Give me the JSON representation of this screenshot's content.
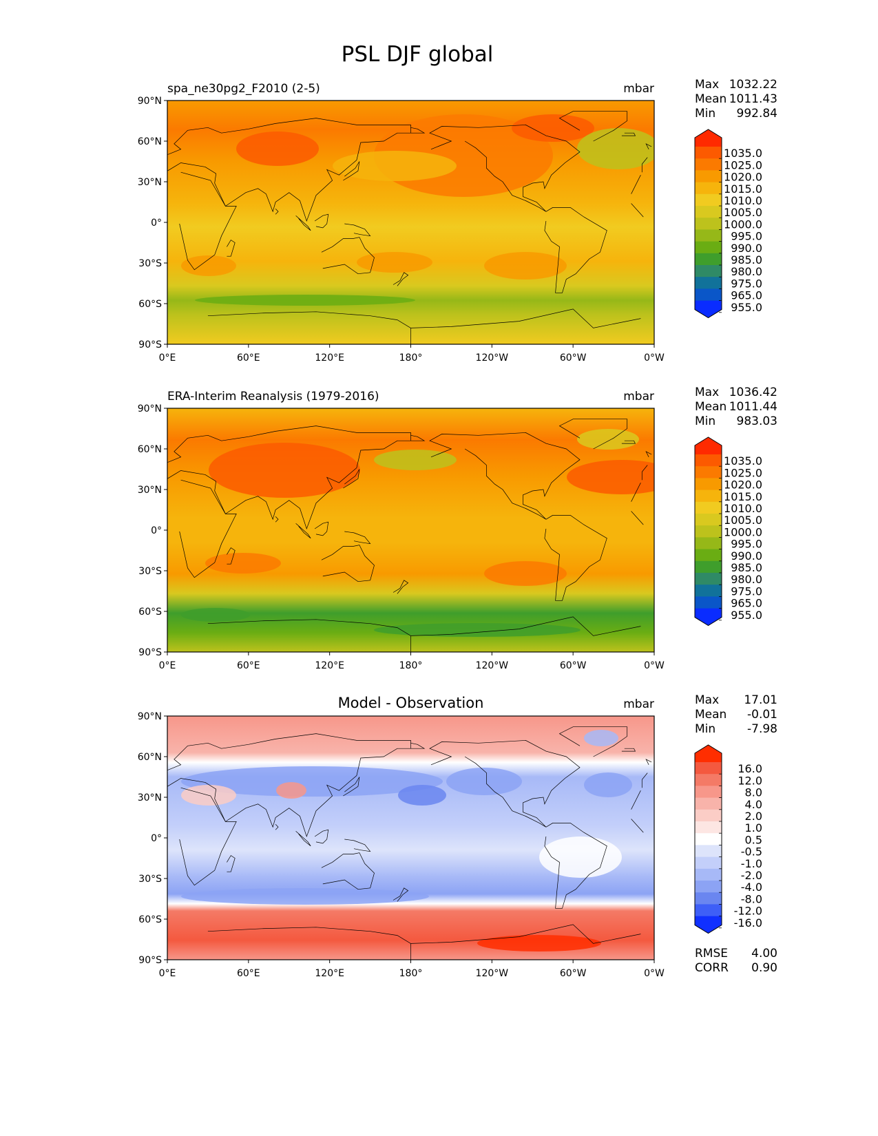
{
  "title": "PSL DJF global",
  "panels": [
    {
      "name": "model",
      "title_left": "spa_ne30pg2_F2010 (2-5)",
      "title_center": "",
      "units": "mbar",
      "stats": [
        [
          "Max",
          "1032.22"
        ],
        [
          "Mean",
          "1011.43"
        ],
        [
          "Min",
          "992.84"
        ]
      ],
      "levels": [
        "1035.0",
        "1025.0",
        "1020.0",
        "1015.0",
        "1010.0",
        "1005.0",
        "1000.0",
        "995.0",
        "990.0",
        "985.0",
        "980.0",
        "975.0",
        "965.0",
        "955.0"
      ],
      "colors": [
        "#ff2a00",
        "#fc5a00",
        "#fb7a00",
        "#f89a00",
        "#f6b40c",
        "#f1cb20",
        "#d9c91f",
        "#bdc21c",
        "#96b818",
        "#6aad13",
        "#3f9e2c",
        "#2f8a66",
        "#11729a",
        "#0a56c8",
        "#0a2cff"
      ],
      "extra_stats": []
    },
    {
      "name": "observation",
      "title_left": "ERA-Interim Reanalysis (1979-2016)",
      "title_center": "",
      "units": "mbar",
      "stats": [
        [
          "Max",
          "1036.42"
        ],
        [
          "Mean",
          "1011.44"
        ],
        [
          "Min",
          "983.03"
        ]
      ],
      "levels": [
        "1035.0",
        "1025.0",
        "1020.0",
        "1015.0",
        "1010.0",
        "1005.0",
        "1000.0",
        "995.0",
        "990.0",
        "985.0",
        "980.0",
        "975.0",
        "965.0",
        "955.0"
      ],
      "colors": [
        "#ff2a00",
        "#fc5a00",
        "#fb7a00",
        "#f89a00",
        "#f6b40c",
        "#f1cb20",
        "#d9c91f",
        "#bdc21c",
        "#96b818",
        "#6aad13",
        "#3f9e2c",
        "#2f8a66",
        "#11729a",
        "#0a56c8",
        "#0a2cff"
      ],
      "extra_stats": []
    },
    {
      "name": "difference",
      "title_left": "",
      "title_center": "Model - Observation",
      "units": "mbar",
      "stats": [
        [
          "Max",
          "17.01"
        ],
        [
          "Mean",
          "-0.01"
        ],
        [
          "Min",
          "-7.98"
        ]
      ],
      "levels": [
        "16.0",
        "12.0",
        "8.0",
        "4.0",
        "2.0",
        "1.0",
        "0.5",
        "-0.5",
        "-1.0",
        "-2.0",
        "-4.0",
        "-8.0",
        "-12.0",
        "-16.0"
      ],
      "colors": [
        "#ff2e00",
        "#f4593f",
        "#f47a66",
        "#f7978a",
        "#f8b3aa",
        "#fbcdc6",
        "#fde6e3",
        "#ffffff",
        "#dde4fb",
        "#c3cffa",
        "#a7b9f7",
        "#8ca3f4",
        "#6a86f0",
        "#3e5ff7",
        "#1030ff"
      ],
      "extra_stats": [
        [
          "RMSE",
          "4.00"
        ],
        [
          "CORR",
          "0.90"
        ]
      ]
    }
  ],
  "lat_ticks": [
    "90°N",
    "60°N",
    "30°N",
    "0°",
    "30°S",
    "60°S",
    "90°S"
  ],
  "lon_ticks": [
    "0°E",
    "60°E",
    "120°E",
    "180°",
    "120°W",
    "60°W",
    "0°W"
  ]
}
